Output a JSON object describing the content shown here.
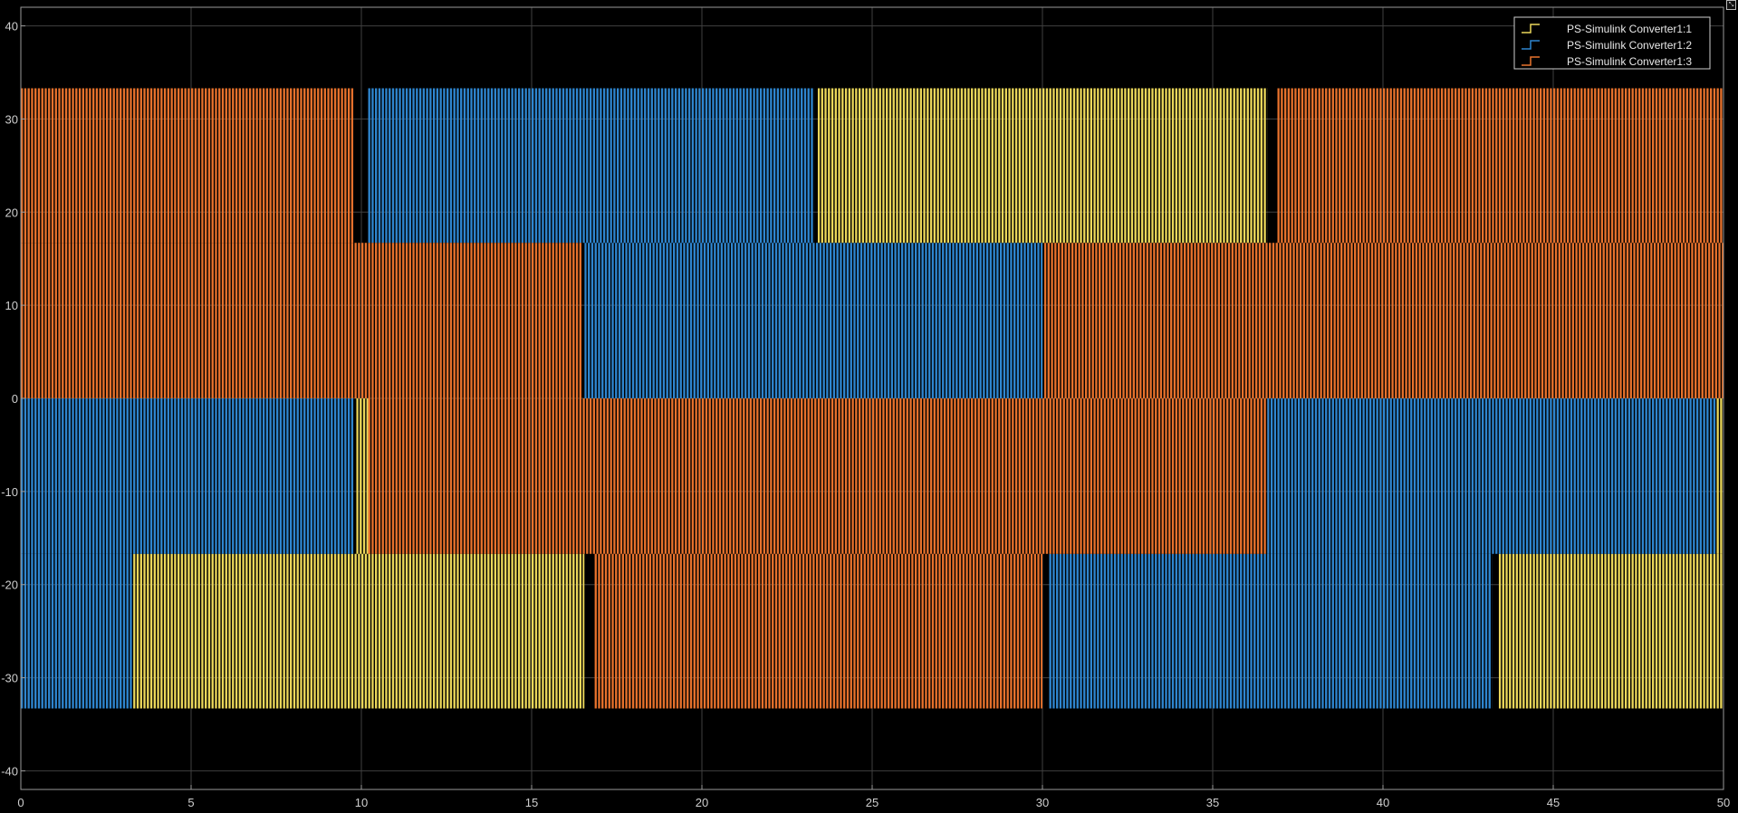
{
  "colors": {
    "background": "#000000",
    "grid": "#404040",
    "axes_box": "#9a9a9a",
    "tick_label": "#cfcfcf",
    "legend_border": "#d0d0d0"
  },
  "corner_button_icon": "expand-icon",
  "corner_button_glyph": "⤡",
  "chart_data": {
    "type": "line",
    "title": "",
    "xlabel": "",
    "ylabel": "",
    "xlim": [
      0,
      50
    ],
    "ylim": [
      -42,
      42
    ],
    "grid": true,
    "legend_position": "top-right",
    "x_ticks": [
      0,
      5,
      10,
      15,
      20,
      25,
      30,
      35,
      40,
      45,
      50
    ],
    "y_ticks": [
      -40,
      -30,
      -20,
      -10,
      0,
      10,
      20,
      30,
      40
    ],
    "x_tick_labels": [
      "0",
      "5",
      "10",
      "15",
      "20",
      "25",
      "30",
      "35",
      "40",
      "45",
      "50"
    ],
    "y_tick_labels": [
      "-40",
      "-30",
      "-20",
      "-10",
      "0",
      "10",
      "20",
      "30",
      "40"
    ],
    "pwm_period": 0.1,
    "series": [
      {
        "name": "PS-Simulink Converter1:1",
        "color": "#ecd85a",
        "segments": [
          {
            "t0": 3.3,
            "t1": 16.55,
            "low": -33.3,
            "high": -16.7
          },
          {
            "t0": 9.85,
            "t1": 10.2,
            "low": -16.7,
            "high": 0
          },
          {
            "t0": 23.4,
            "t1": 36.6,
            "low": 16.7,
            "high": 33.3
          },
          {
            "t0": 43.4,
            "t1": 50,
            "low": -33.3,
            "high": -16.7
          },
          {
            "t0": 49.8,
            "t1": 50,
            "low": -16.7,
            "high": 0
          }
        ]
      },
      {
        "name": "PS-Simulink Converter1:2",
        "color": "#2e86d0",
        "segments": [
          {
            "t0": 0,
            "t1": 3.3,
            "low": -33.3,
            "high": -16.7
          },
          {
            "t0": 0,
            "t1": 9.8,
            "low": -16.7,
            "high": 0
          },
          {
            "t0": 10.2,
            "t1": 23.3,
            "low": 16.7,
            "high": 33.3
          },
          {
            "t0": 16.55,
            "t1": 30.0,
            "low": 0,
            "high": 16.7
          },
          {
            "t0": 30.2,
            "t1": 43.2,
            "low": -33.3,
            "high": -16.7
          },
          {
            "t0": 36.6,
            "t1": 49.8,
            "low": -16.7,
            "high": 0
          }
        ]
      },
      {
        "name": "PS-Simulink Converter1:3",
        "color": "#e8722c",
        "segments": [
          {
            "t0": 0,
            "t1": 9.8,
            "low": 16.7,
            "high": 33.3
          },
          {
            "t0": 0,
            "t1": 16.5,
            "low": 0,
            "high": 16.7
          },
          {
            "t0": 10.2,
            "t1": 36.6,
            "low": -16.7,
            "high": 0
          },
          {
            "t0": 16.85,
            "t1": 30.0,
            "low": -33.3,
            "high": -16.7
          },
          {
            "t0": 30.05,
            "t1": 50,
            "low": 0,
            "high": 16.7
          },
          {
            "t0": 36.9,
            "t1": 50,
            "low": 16.7,
            "high": 33.3
          }
        ]
      }
    ]
  }
}
